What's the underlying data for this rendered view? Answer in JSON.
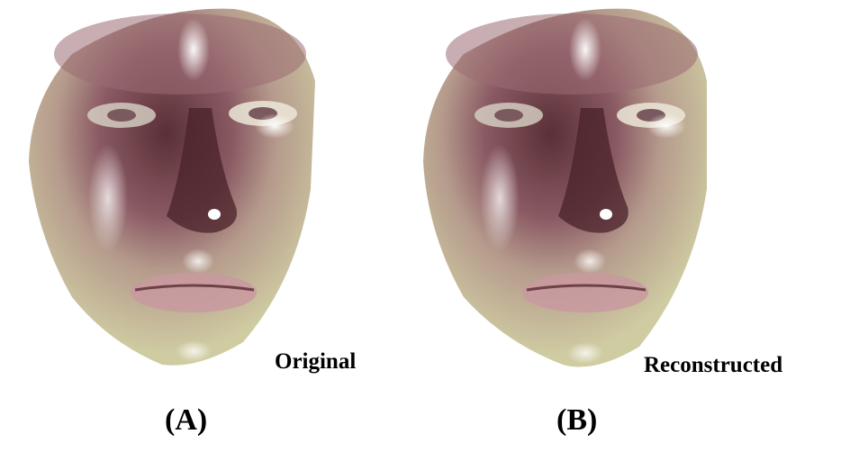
{
  "panels": [
    {
      "caption": "Original",
      "label": "(A)"
    },
    {
      "caption": "Reconstructed",
      "label": "(B)"
    }
  ],
  "colors": {
    "skin_light": "#c9c79b",
    "skin_mid": "#a98a7e",
    "skin_dark": "#5a2f36",
    "highlight": "#ffffff"
  }
}
